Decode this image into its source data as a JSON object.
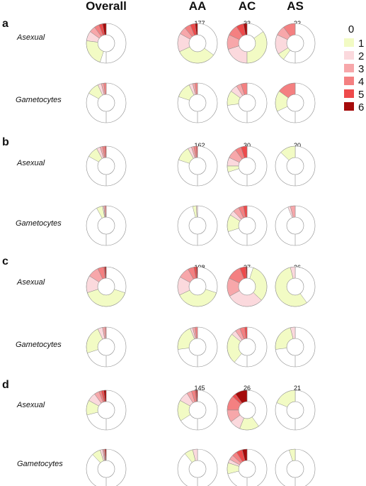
{
  "columns": [
    "Overall",
    "AA",
    "AC",
    "AS"
  ],
  "row_labels": [
    "Asexual",
    "Gametocytes"
  ],
  "legend": {
    "labels": [
      "0",
      "1",
      "2",
      "3",
      "4",
      "5",
      "6"
    ],
    "colors": [
      "#ffffff",
      "#f2fbc4",
      "#fbd9dd",
      "#f7a7aa",
      "#f48081",
      "#ee4a4b",
      "#a50b0b"
    ]
  },
  "chart_data": [
    {
      "type": "donut",
      "panel": "a",
      "counts": [
        "",
        "177",
        "33",
        "22"
      ],
      "rows": [
        {
          "label": "Asexual",
          "charts": [
            [
              0.55,
              0.22,
              0.08,
              0.05,
              0.04,
              0.03,
              0.03
            ],
            [
              0.35,
              0.33,
              0.15,
              0.06,
              0.05,
              0.04,
              0.02
            ],
            [
              0.15,
              0.35,
              0.2,
              0.12,
              0.09,
              0.06,
              0.03
            ],
            [
              0.6,
              0.06,
              0.16,
              0.08,
              0.1,
              0.0,
              0.0
            ]
          ]
        },
        {
          "label": "Gametocytes",
          "charts": [
            [
              0.83,
              0.1,
              0.03,
              0.02,
              0.02,
              0.0,
              0.0
            ],
            [
              0.8,
              0.13,
              0.03,
              0.02,
              0.02,
              0.0,
              0.0
            ],
            [
              0.73,
              0.12,
              0.06,
              0.04,
              0.05,
              0.0,
              0.0
            ],
            [
              0.68,
              0.17,
              0.0,
              0.0,
              0.15,
              0.0,
              0.0
            ]
          ]
        }
      ]
    },
    {
      "type": "donut",
      "panel": "b",
      "counts": [
        "",
        "162",
        "30",
        "20"
      ],
      "rows": [
        {
          "label": "Asexual",
          "charts": [
            [
              0.83,
              0.09,
              0.03,
              0.02,
              0.02,
              0.01,
              0.0
            ],
            [
              0.8,
              0.12,
              0.03,
              0.02,
              0.02,
              0.01,
              0.0
            ],
            [
              0.7,
              0.05,
              0.07,
              0.08,
              0.05,
              0.05,
              0.0
            ],
            [
              0.87,
              0.13,
              0.0,
              0.0,
              0.0,
              0.0,
              0.0
            ]
          ]
        },
        {
          "label": "Gametocytes",
          "charts": [
            [
              0.92,
              0.05,
              0.01,
              0.01,
              0.01,
              0.0,
              0.0
            ],
            [
              0.96,
              0.03,
              0.01,
              0.0,
              0.0,
              0.0,
              0.0
            ],
            [
              0.7,
              0.14,
              0.04,
              0.05,
              0.04,
              0.03,
              0.0
            ],
            [
              0.94,
              0.0,
              0.02,
              0.04,
              0.0,
              0.0,
              0.0
            ]
          ]
        }
      ]
    },
    {
      "type": "donut",
      "panel": "c",
      "counts": [
        "",
        "198",
        "37",
        "26"
      ],
      "rows": [
        {
          "label": "Asexual",
          "charts": [
            [
              0.3,
              0.4,
              0.14,
              0.09,
              0.05,
              0.01,
              0.01
            ],
            [
              0.3,
              0.38,
              0.15,
              0.09,
              0.05,
              0.02,
              0.01
            ],
            [
              0.05,
              0.32,
              0.3,
              0.15,
              0.12,
              0.05,
              0.01
            ],
            [
              0.4,
              0.56,
              0.04,
              0.0,
              0.0,
              0.0,
              0.0
            ]
          ]
        },
        {
          "label": "Gametocytes",
          "charts": [
            [
              0.7,
              0.23,
              0.04,
              0.02,
              0.01,
              0.0,
              0.0
            ],
            [
              0.73,
              0.21,
              0.02,
              0.02,
              0.02,
              0.0,
              0.0
            ],
            [
              0.61,
              0.25,
              0.04,
              0.04,
              0.04,
              0.02,
              0.0
            ],
            [
              0.73,
              0.23,
              0.04,
              0.0,
              0.0,
              0.0,
              0.0
            ]
          ]
        }
      ]
    },
    {
      "type": "donut",
      "panel": "d",
      "counts": [
        "",
        "145",
        "26",
        "21"
      ],
      "rows": [
        {
          "label": "Asexual",
          "charts": [
            [
              0.71,
              0.12,
              0.07,
              0.04,
              0.02,
              0.02,
              0.02
            ],
            [
              0.66,
              0.17,
              0.08,
              0.04,
              0.03,
              0.01,
              0.01
            ],
            [
              0.4,
              0.16,
              0.09,
              0.1,
              0.12,
              0.03,
              0.1
            ],
            [
              0.81,
              0.19,
              0.0,
              0.0,
              0.0,
              0.0,
              0.0
            ]
          ]
        },
        {
          "label": "Gametocytes",
          "charts": [
            [
              0.88,
              0.07,
              0.02,
              0.01,
              0.01,
              0.0,
              0.01
            ],
            [
              0.89,
              0.07,
              0.04,
              0.0,
              0.0,
              0.0,
              0.0
            ],
            [
              0.71,
              0.09,
              0.03,
              0.04,
              0.04,
              0.05,
              0.04
            ],
            [
              0.95,
              0.05,
              0.0,
              0.0,
              0.0,
              0.0,
              0.0
            ]
          ]
        }
      ]
    }
  ]
}
